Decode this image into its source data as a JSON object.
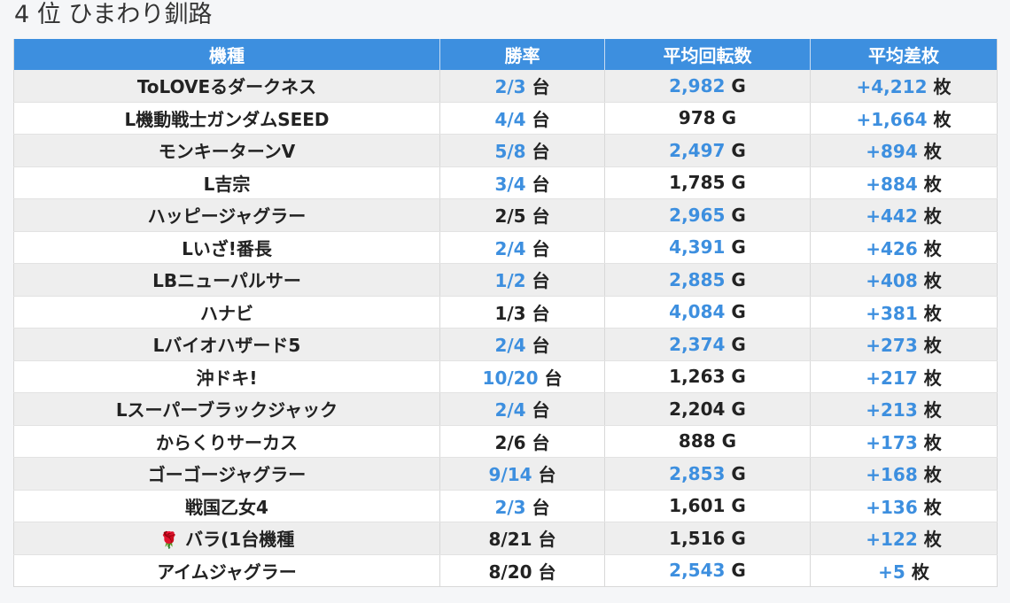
{
  "heading": "4 位 ひまわり釧路",
  "table": {
    "headers": [
      "機種",
      "勝率",
      "平均回転数",
      "平均差枚"
    ],
    "rows": [
      {
        "machine": "ToLOVEるダークネス",
        "win": "2/3",
        "win_hi": true,
        "spins": "2,982",
        "spins_hi": true,
        "diff": "+4,212",
        "diff_hi": true
      },
      {
        "machine": "L機動戦士ガンダムSEED",
        "win": "4/4",
        "win_hi": true,
        "spins": "978",
        "spins_hi": false,
        "diff": "+1,664",
        "diff_hi": true
      },
      {
        "machine": "モンキーターンV",
        "win": "5/8",
        "win_hi": true,
        "spins": "2,497",
        "spins_hi": true,
        "diff": "+894",
        "diff_hi": true
      },
      {
        "machine": "L吉宗",
        "win": "3/4",
        "win_hi": true,
        "spins": "1,785",
        "spins_hi": false,
        "diff": "+884",
        "diff_hi": true
      },
      {
        "machine": "ハッピージャグラー",
        "win": "2/5",
        "win_hi": false,
        "spins": "2,965",
        "spins_hi": true,
        "diff": "+442",
        "diff_hi": true
      },
      {
        "machine": "Lいざ!番長",
        "win": "2/4",
        "win_hi": true,
        "spins": "4,391",
        "spins_hi": true,
        "diff": "+426",
        "diff_hi": true
      },
      {
        "machine": "LBニューパルサー",
        "win": "1/2",
        "win_hi": true,
        "spins": "2,885",
        "spins_hi": true,
        "diff": "+408",
        "diff_hi": true
      },
      {
        "machine": "ハナビ",
        "win": "1/3",
        "win_hi": false,
        "spins": "4,084",
        "spins_hi": true,
        "diff": "+381",
        "diff_hi": true
      },
      {
        "machine": "Lバイオハザード5",
        "win": "2/4",
        "win_hi": true,
        "spins": "2,374",
        "spins_hi": true,
        "diff": "+273",
        "diff_hi": true
      },
      {
        "machine": "沖ドキ!",
        "win": "10/20",
        "win_hi": true,
        "spins": "1,263",
        "spins_hi": false,
        "diff": "+217",
        "diff_hi": true
      },
      {
        "machine": "Lスーパーブラックジャック",
        "win": "2/4",
        "win_hi": true,
        "spins": "2,204",
        "spins_hi": false,
        "diff": "+213",
        "diff_hi": true
      },
      {
        "machine": "からくりサーカス",
        "win": "2/6",
        "win_hi": false,
        "spins": "888",
        "spins_hi": false,
        "diff": "+173",
        "diff_hi": true
      },
      {
        "machine": "ゴーゴージャグラー",
        "win": "9/14",
        "win_hi": true,
        "spins": "2,853",
        "spins_hi": true,
        "diff": "+168",
        "diff_hi": true
      },
      {
        "machine": "戦国乙女4",
        "win": "2/3",
        "win_hi": true,
        "spins": "1,601",
        "spins_hi": false,
        "diff": "+136",
        "diff_hi": true
      },
      {
        "machine": "バラ(1台機種",
        "prefix_icon": "🌹",
        "win": "8/21",
        "win_hi": false,
        "spins": "1,516",
        "spins_hi": false,
        "diff": "+122",
        "diff_hi": true
      },
      {
        "machine": "アイムジャグラー",
        "win": "8/20",
        "win_hi": false,
        "spins": "2,543",
        "spins_hi": true,
        "diff": "+5",
        "diff_hi": true
      }
    ],
    "units": {
      "win": "台",
      "spins": "G",
      "diff": "枚"
    }
  },
  "colors": {
    "header_bg": "#3d8fdf",
    "highlight": "#3d8fdf",
    "text": "#222222"
  }
}
